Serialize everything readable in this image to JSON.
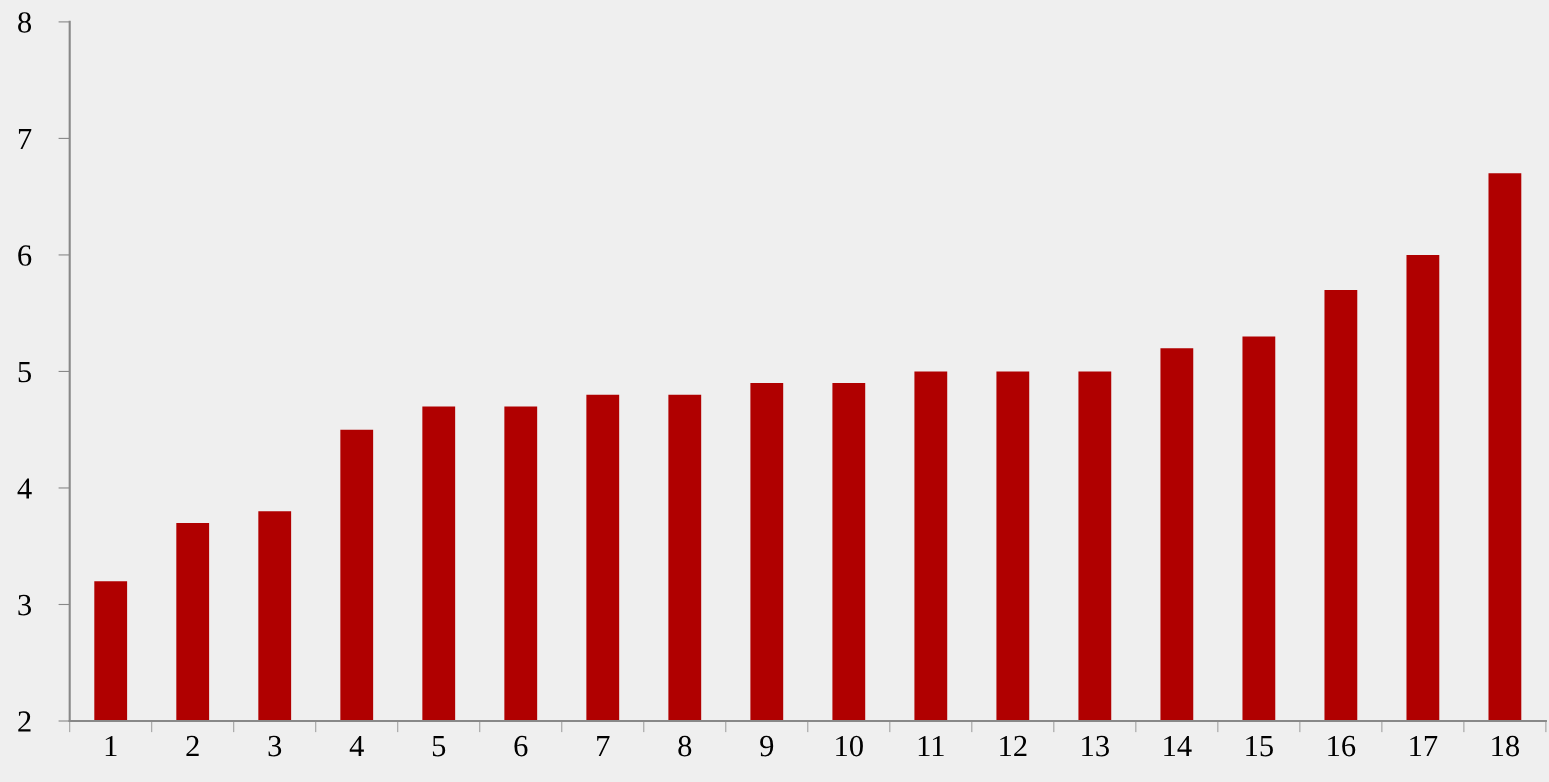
{
  "chart_data": {
    "type": "bar",
    "categories": [
      "1",
      "2",
      "3",
      "4",
      "5",
      "6",
      "7",
      "8",
      "9",
      "10",
      "11",
      "12",
      "13",
      "14",
      "15",
      "16",
      "17",
      "18"
    ],
    "values": [
      3.2,
      3.7,
      3.8,
      4.5,
      4.7,
      4.7,
      4.8,
      4.8,
      4.9,
      4.9,
      5.0,
      5.0,
      5.0,
      5.2,
      5.3,
      5.7,
      6.0,
      6.7
    ],
    "color": "#b00000",
    "ylim": [
      2,
      8
    ],
    "yticks": [
      2,
      3,
      4,
      5,
      6,
      7,
      8
    ],
    "grid": false,
    "legend": false
  }
}
